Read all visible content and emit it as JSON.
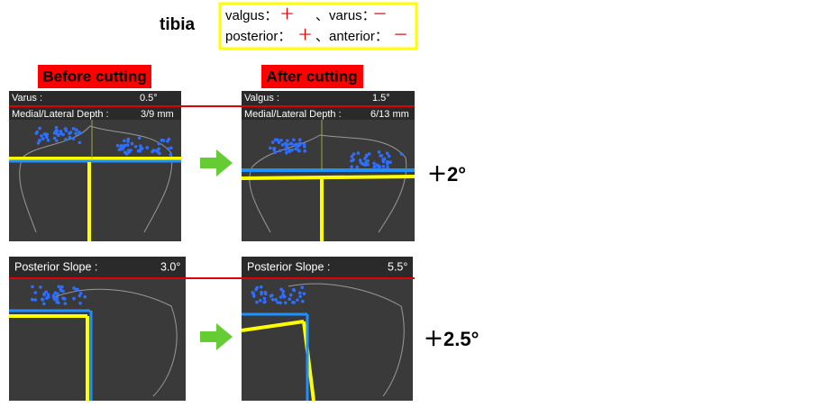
{
  "title": "tibia",
  "legend": {
    "rows": [
      [
        {
          "label": "valgus：",
          "sign": "＋"
        },
        {
          "label": "、varus：",
          "sign": "－"
        }
      ],
      [
        {
          "label": "posterior：",
          "sign": "＋"
        },
        {
          "label": "、anterior：",
          "sign": "－"
        }
      ]
    ]
  },
  "columns": {
    "before": "Before cutting",
    "after": "After cutting"
  },
  "coronal": {
    "before": {
      "angle_label": "Varus :",
      "angle": "0.5°",
      "depth_label": "Medial/Lateral Depth :",
      "depth": "3/9 mm"
    },
    "after": {
      "angle_label": "Valgus :",
      "angle": "1.5°",
      "depth_label": "Medial/Lateral Depth :",
      "depth": "6/13 mm"
    },
    "change": "＋2°"
  },
  "sagittal": {
    "before": {
      "angle_label": "Posterior Slope :",
      "angle": "3.0°"
    },
    "after": {
      "angle_label": "Posterior Slope :",
      "angle": "5.5°"
    },
    "change": "＋2.5°"
  }
}
